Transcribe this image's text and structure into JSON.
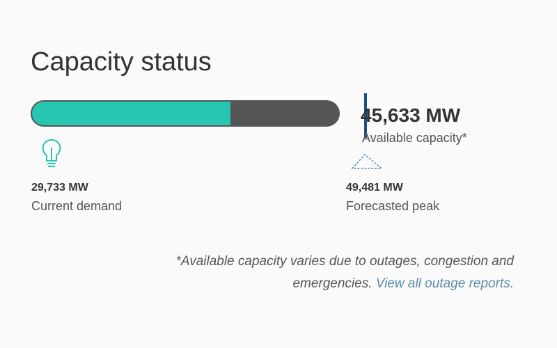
{
  "title": "Capacity status",
  "capacity": {
    "available": {
      "value": 45633,
      "label": "45,633 MW",
      "caption": "Available capacity*"
    },
    "demand": {
      "value": 29733,
      "label": "29,733 MW",
      "caption": "Current demand"
    },
    "forecast": {
      "value": 49481,
      "label": "49,481 MW",
      "caption": "Forecasted peak"
    }
  },
  "footnote": {
    "text": "*Available capacity varies due to outages, congestion and emergencies.",
    "link": "View all outage reports."
  }
}
